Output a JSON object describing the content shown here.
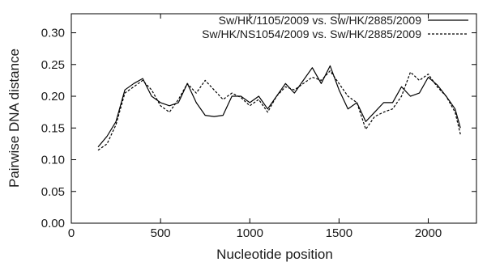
{
  "chart_data": {
    "type": "line",
    "title": "",
    "xlabel": "Nucleotide position",
    "ylabel": "Pairwise DNA distance",
    "xlim": [
      0,
      2270
    ],
    "ylim": [
      0.0,
      0.33
    ],
    "xticks": [
      0,
      500,
      1000,
      1500,
      2000
    ],
    "xtick_labels": [
      "0",
      "500",
      "1000",
      "1500",
      "2000"
    ],
    "yticks": [
      0.0,
      0.05,
      0.1,
      0.15,
      0.2,
      0.25,
      0.3
    ],
    "ytick_labels": [
      "0.00",
      "0.05",
      "0.10",
      "0.15",
      "0.20",
      "0.25",
      "0.30"
    ],
    "grid": false,
    "legend_position": "top-right",
    "x": [
      150,
      200,
      250,
      300,
      350,
      400,
      450,
      500,
      550,
      600,
      650,
      700,
      750,
      800,
      850,
      900,
      950,
      1000,
      1050,
      1100,
      1150,
      1200,
      1250,
      1300,
      1350,
      1400,
      1450,
      1500,
      1550,
      1600,
      1650,
      1700,
      1750,
      1800,
      1850,
      1900,
      1950,
      2000,
      2050,
      2100,
      2150,
      2180
    ],
    "series": [
      {
        "name": "Sw/HK/1105/2009 vs. Sw/HK/2885/2009",
        "style": "solid",
        "color": "#000000",
        "values": [
          0.12,
          0.137,
          0.16,
          0.21,
          0.22,
          0.228,
          0.2,
          0.19,
          0.185,
          0.19,
          0.22,
          0.19,
          0.17,
          0.168,
          0.17,
          0.2,
          0.2,
          0.19,
          0.2,
          0.18,
          0.2,
          0.22,
          0.205,
          0.225,
          0.245,
          0.22,
          0.248,
          0.21,
          0.18,
          0.19,
          0.16,
          0.175,
          0.19,
          0.19,
          0.215,
          0.2,
          0.205,
          0.23,
          0.218,
          0.2,
          0.18,
          0.15
        ]
      },
      {
        "name": "Sw/HK/NS1054/2009 vs. Sw/HK/2885/2009",
        "style": "dashed",
        "color": "#000000",
        "values": [
          0.115,
          0.125,
          0.155,
          0.205,
          0.215,
          0.225,
          0.21,
          0.185,
          0.175,
          0.195,
          0.22,
          0.205,
          0.225,
          0.21,
          0.195,
          0.205,
          0.198,
          0.185,
          0.195,
          0.175,
          0.2,
          0.215,
          0.21,
          0.22,
          0.23,
          0.225,
          0.24,
          0.22,
          0.2,
          0.19,
          0.148,
          0.168,
          0.175,
          0.18,
          0.2,
          0.238,
          0.225,
          0.235,
          0.215,
          0.2,
          0.175,
          0.14
        ]
      }
    ]
  }
}
